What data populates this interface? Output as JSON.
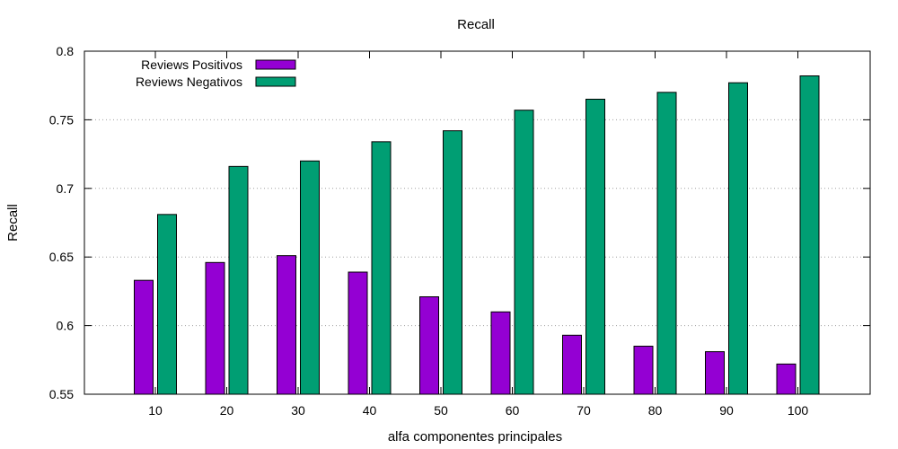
{
  "chart_data": {
    "type": "bar",
    "title": "Recall",
    "xlabel": "alfa componentes principales",
    "ylabel": "Recall",
    "categories": [
      "10",
      "20",
      "30",
      "40",
      "50",
      "60",
      "70",
      "80",
      "90",
      "100"
    ],
    "ylim": [
      0.55,
      0.8
    ],
    "yticks": [
      "0.55",
      "0.6",
      "0.65",
      "0.7",
      "0.75",
      "0.8"
    ],
    "grid": "horizontal dotted",
    "legend_position": "top-left",
    "series": [
      {
        "name": "Reviews Positivos",
        "color": "#9400d3",
        "values": [
          0.633,
          0.646,
          0.651,
          0.639,
          0.621,
          0.61,
          0.593,
          0.585,
          0.581,
          0.572
        ]
      },
      {
        "name": "Reviews Negativos",
        "color": "#009e73",
        "values": [
          0.681,
          0.716,
          0.72,
          0.734,
          0.742,
          0.757,
          0.765,
          0.77,
          0.777,
          0.782
        ]
      }
    ]
  }
}
